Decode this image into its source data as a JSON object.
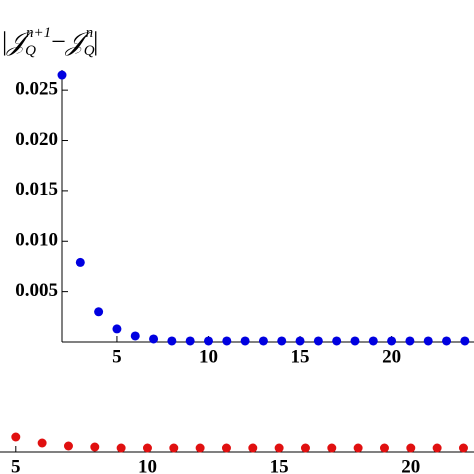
{
  "chart_data": [
    {
      "type": "scatter",
      "y_label": [
        "|",
        "𝒥",
        "Q",
        "n+1",
        "−",
        "𝒥",
        "Q",
        "n",
        "|"
      ],
      "x": [
        2,
        3,
        4,
        5,
        6,
        7,
        8,
        9,
        10,
        11,
        12,
        13,
        14,
        15,
        16,
        17,
        18,
        19,
        20,
        21,
        22,
        23,
        24
      ],
      "values": [
        0.0265,
        0.0079,
        0.003,
        0.0013,
        0.0006,
        0.0003,
        0.0001,
        0.0001,
        0.0001,
        0.0001,
        0.0001,
        0.0001,
        0.0001,
        0.0001,
        0.0001,
        0.0001,
        0.0001,
        0.0001,
        0.0001,
        0.0001,
        0.0001,
        0.0001,
        0.0001
      ],
      "color": "#0000e0",
      "xlim": [
        2,
        24.5
      ],
      "ylim": [
        0,
        0.027
      ],
      "xticks": [
        5,
        10,
        15,
        20
      ],
      "yticks": [
        0.005,
        {
          "value": 0.01,
          "label": "0.010"
        },
        0.015,
        {
          "value": 0.02,
          "label": "0.020"
        },
        0.025
      ]
    },
    {
      "type": "scatter",
      "x": [
        5,
        6,
        7,
        8,
        9,
        10,
        11,
        12,
        13,
        14,
        15,
        16,
        17,
        18,
        19,
        20,
        21,
        22
      ],
      "values": [
        0.0015,
        0.0009,
        0.0006,
        0.0005,
        0.0004,
        0.0004,
        0.0004,
        0.0004,
        0.0004,
        0.0004,
        0.0004,
        0.0004,
        0.0004,
        0.0004,
        0.0004,
        0.0004,
        0.0004,
        0.0004
      ],
      "color": "#e01010",
      "xlim": [
        4.4,
        22.4
      ],
      "ylim": [
        0,
        0.0025
      ],
      "xticks": [
        5,
        10,
        15,
        20
      ]
    }
  ]
}
